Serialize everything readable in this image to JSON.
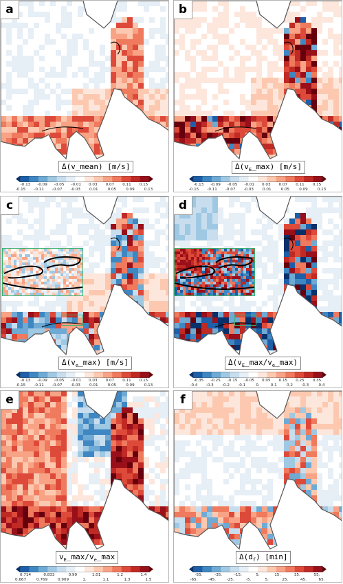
{
  "panels": [
    {
      "letter": "a",
      "quantity": "Δ(v_mean) [m/s]",
      "palette": "div",
      "mode": "pos",
      "ticks_top": [
        "-0.13",
        "-0.09",
        "-0.05",
        "-0.01",
        "0.03",
        "0.07",
        "0.11",
        "0.15"
      ],
      "ticks_bot": [
        "-0.15",
        "-0.11",
        "-0.07",
        "-0.03",
        "0.01",
        "0.05",
        "0.09",
        "0.13"
      ],
      "inset": false
    },
    {
      "letter": "b",
      "quantity": "Δ(vE_max) [m/s]",
      "palette": "div",
      "mode": "pos_strong",
      "ticks_top": [
        "-0.13",
        "-0.09",
        "-0.05",
        "-0.01",
        "0.03",
        "0.07",
        "0.11",
        "0.15"
      ],
      "ticks_bot": [
        "-0.15",
        "-0.11",
        "-0.07",
        "-0.03",
        "0.01",
        "0.05",
        "0.09",
        "0.13"
      ],
      "inset": false
    },
    {
      "letter": "c",
      "quantity": "Δ(ve_max) [m/s]",
      "palette": "div",
      "mode": "mixed",
      "ticks_top": [
        "-0.13",
        "-0.09",
        "-0.05",
        "-0.01",
        "0.03",
        "0.07",
        "0.11",
        "0.15"
      ],
      "ticks_bot": [
        "-0.15",
        "-0.11",
        "-0.07",
        "-0.03",
        "0.01",
        "0.05",
        "0.09",
        "0.13"
      ],
      "inset": true
    },
    {
      "letter": "d",
      "quantity": "Δ(vE_max/ve_max)",
      "palette": "div",
      "mode": "neg_strong",
      "ticks_top": [
        "-0.35",
        "-0.25",
        "-0.15",
        "-0.05",
        "0.05",
        "0.15",
        "0.25",
        "0.35"
      ],
      "ticks_bot": [
        "-0.4",
        "-0.3",
        "-0.2",
        "-0.1",
        "0.",
        "0.1",
        "0.2",
        "0.3",
        "0.4"
      ],
      "inset": true
    },
    {
      "letter": "e",
      "quantity": "vE_max/ve_max",
      "palette": "div",
      "mode": "ratio",
      "ticks_top": [
        "0.714",
        "0.833",
        "0.99",
        "1.01",
        "1.2",
        "1.4"
      ],
      "ticks_bot": [
        "0.667",
        "0.769",
        "0.909",
        "1.",
        "1.1",
        "1.3",
        "1.5"
      ],
      "inset": false
    },
    {
      "letter": "f",
      "quantity": "Δ(df) [min]",
      "palette": "div",
      "mode": "time",
      "ticks_top": [
        "-55.",
        "-35.",
        "-15.",
        "5.",
        "15.",
        "35.",
        "55."
      ],
      "ticks_bot": [
        "-65.",
        "-45.",
        "-25.",
        "-5.",
        "5.",
        "25.",
        "45.",
        "65."
      ],
      "inset": false
    }
  ],
  "chart_data": [
    {
      "type": "heatmap",
      "title": "",
      "colorbar_label": "Δ(v_mean) [m/s]",
      "vmin": -0.15,
      "vmax": 0.15,
      "levels": [
        -0.15,
        -0.13,
        -0.11,
        -0.09,
        -0.07,
        -0.05,
        -0.03,
        -0.01,
        0.01,
        0.03,
        0.05,
        0.07,
        0.09,
        0.11,
        0.13,
        0.15
      ]
    },
    {
      "type": "heatmap",
      "title": "",
      "colorbar_label": "Δ(vE_max) [m/s]",
      "vmin": -0.15,
      "vmax": 0.15,
      "levels": [
        -0.15,
        -0.13,
        -0.11,
        -0.09,
        -0.07,
        -0.05,
        -0.03,
        -0.01,
        0.01,
        0.03,
        0.05,
        0.07,
        0.09,
        0.11,
        0.13,
        0.15
      ]
    },
    {
      "type": "heatmap",
      "title": "",
      "colorbar_label": "Δ(ve_max) [m/s]",
      "vmin": -0.15,
      "vmax": 0.15,
      "levels": [
        -0.15,
        -0.13,
        -0.11,
        -0.09,
        -0.07,
        -0.05,
        -0.03,
        -0.01,
        0.01,
        0.03,
        0.05,
        0.07,
        0.09,
        0.11,
        0.13,
        0.15
      ]
    },
    {
      "type": "heatmap",
      "title": "",
      "colorbar_label": "Δ(vE_max/ve_max)",
      "vmin": -0.4,
      "vmax": 0.4,
      "levels": [
        -0.4,
        -0.35,
        -0.3,
        -0.25,
        -0.2,
        -0.15,
        -0.1,
        -0.05,
        0,
        0.05,
        0.1,
        0.15,
        0.2,
        0.25,
        0.3,
        0.35,
        0.4
      ]
    },
    {
      "type": "heatmap",
      "title": "",
      "colorbar_label": "vE_max/ve_max",
      "vmin": 0.667,
      "vmax": 1.5,
      "levels": [
        0.667,
        0.714,
        0.769,
        0.833,
        0.909,
        0.99,
        1.0,
        1.01,
        1.1,
        1.2,
        1.3,
        1.4,
        1.5
      ]
    },
    {
      "type": "heatmap",
      "title": "",
      "colorbar_label": "Δ(df) [min]",
      "vmin": -65,
      "vmax": 65,
      "levels": [
        -65,
        -55,
        -45,
        -35,
        -25,
        -15,
        -5,
        5,
        15,
        25,
        35,
        45,
        55,
        65
      ]
    }
  ],
  "colors": {
    "diverging": [
      "#08306b",
      "#1d5fa8",
      "#3f87c2",
      "#6faad4",
      "#9fc8e3",
      "#c8ddee",
      "#e6eef6",
      "#ffffff",
      "#fde7dc",
      "#fcc9b0",
      "#f8a385",
      "#ef7a5d",
      "#de4a3a",
      "#c02a24",
      "#990f1a",
      "#67000d"
    ],
    "land": "#ffffff",
    "coast": "#555555",
    "inset_frame": "#3cb371",
    "contour": "#000000"
  }
}
